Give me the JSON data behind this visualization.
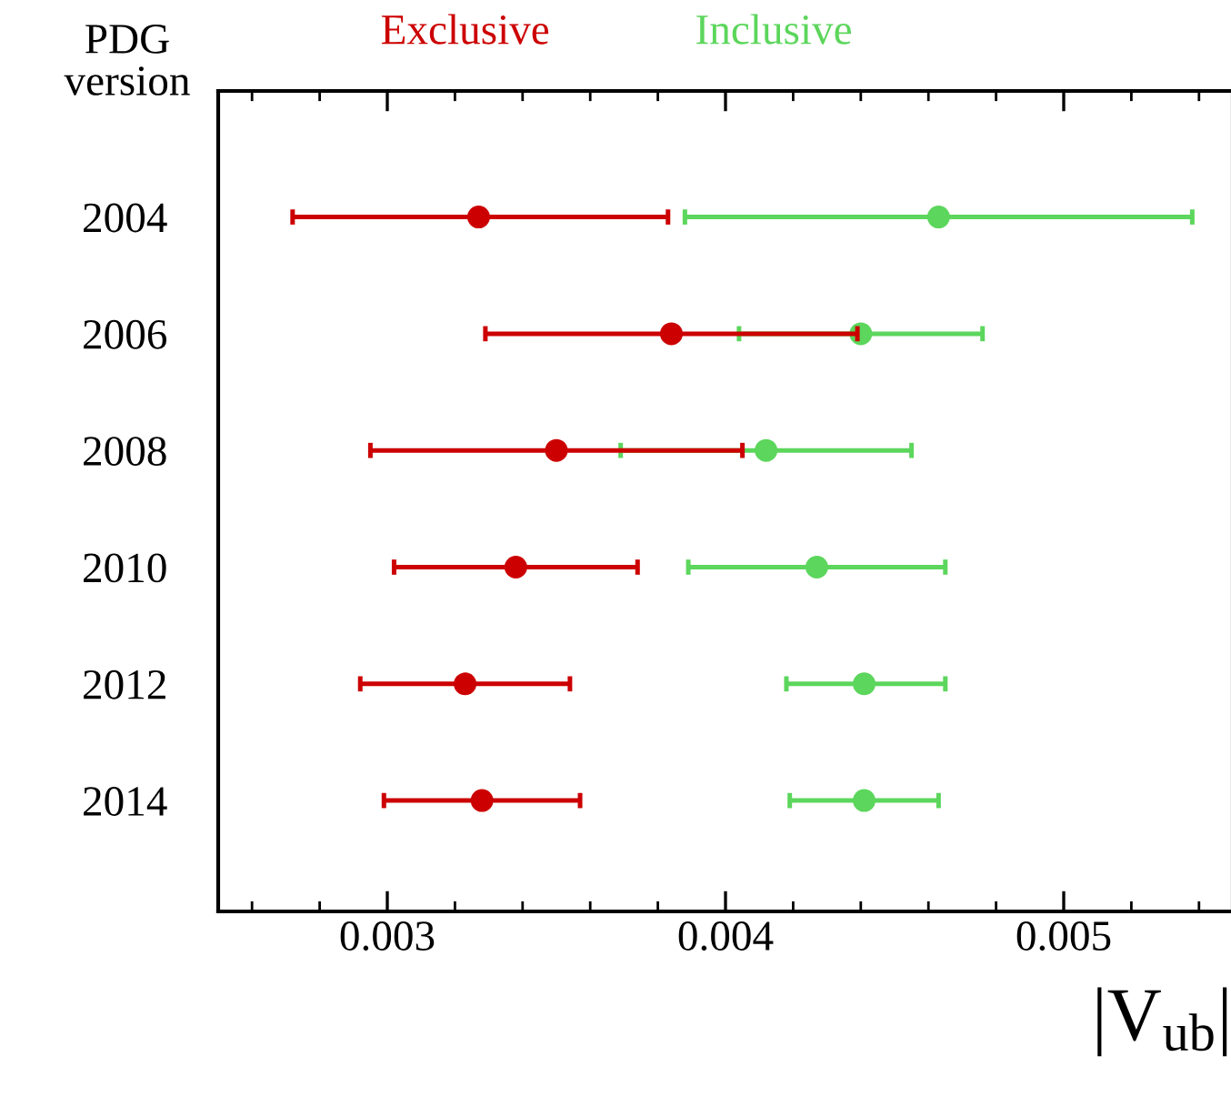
{
  "chart_data": {
    "type": "scatter",
    "orientation": "horizontal",
    "ylabel": "PDG version",
    "xlabel": "|V$_{ub}$|",
    "categories": [
      "2004",
      "2006",
      "2008",
      "2010",
      "2012",
      "2014"
    ],
    "series": [
      {
        "name": "Exclusive",
        "color": "#cc0000",
        "values": [
          0.00327,
          0.00384,
          0.0035,
          0.00338,
          0.00323,
          0.00328
        ],
        "errors": [
          [
            0.00272,
            0.00383
          ],
          [
            0.00329,
            0.00439
          ],
          [
            0.00295,
            0.00405
          ],
          [
            0.00302,
            0.00374
          ],
          [
            0.00292,
            0.00354
          ],
          [
            0.00299,
            0.00357
          ]
        ]
      },
      {
        "name": "Inclusive",
        "color": "#5cd65c",
        "values": [
          0.00463,
          0.0044,
          0.00412,
          0.00427,
          0.00441,
          0.00441
        ],
        "errors": [
          [
            0.00388,
            0.00538
          ],
          [
            0.00404,
            0.00476
          ],
          [
            0.00369,
            0.00455
          ],
          [
            0.00389,
            0.00465
          ],
          [
            0.00418,
            0.00465
          ],
          [
            0.00419,
            0.00463
          ]
        ]
      }
    ],
    "xlim": [
      0.0025,
      0.0055
    ],
    "xticks": [
      0.003,
      0.004,
      0.005
    ],
    "marker": "circle",
    "legend": "top",
    "grid": false
  }
}
